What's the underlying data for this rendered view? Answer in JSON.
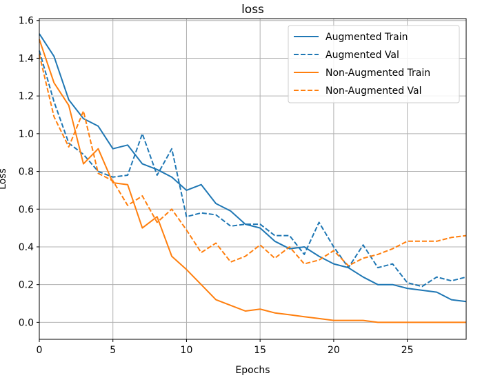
{
  "chart_data": {
    "type": "line",
    "title": "loss",
    "xlabel": "Epochs",
    "ylabel": "Loss",
    "xlim": [
      0,
      29
    ],
    "ylim": [
      -0.09,
      1.61
    ],
    "xticks": [
      0,
      5,
      10,
      15,
      20,
      25
    ],
    "yticks": [
      0.0,
      0.2,
      0.4,
      0.6,
      0.8,
      1.0,
      1.2,
      1.4,
      1.6
    ],
    "grid": true,
    "legend_position": "upper right",
    "x": [
      0,
      1,
      2,
      3,
      4,
      5,
      6,
      7,
      8,
      9,
      10,
      11,
      12,
      13,
      14,
      15,
      16,
      17,
      18,
      19,
      20,
      21,
      22,
      23,
      24,
      25,
      26,
      27,
      28,
      29
    ],
    "series": [
      {
        "name": "Augmented Train",
        "color": "#1f77b4",
        "linestyle": "solid",
        "values": [
          1.53,
          1.41,
          1.18,
          1.08,
          1.04,
          0.92,
          0.94,
          0.84,
          0.81,
          0.77,
          0.7,
          0.73,
          0.63,
          0.59,
          0.52,
          0.5,
          0.43,
          0.39,
          0.4,
          0.35,
          0.31,
          0.29,
          0.24,
          0.2,
          0.2,
          0.18,
          0.17,
          0.16,
          0.12,
          0.11
        ]
      },
      {
        "name": "Augmented Val",
        "color": "#1f77b4",
        "linestyle": "dashed",
        "values": [
          1.44,
          1.17,
          0.95,
          0.89,
          0.8,
          0.77,
          0.78,
          1.0,
          0.78,
          0.92,
          0.56,
          0.58,
          0.57,
          0.51,
          0.52,
          0.52,
          0.46,
          0.46,
          0.36,
          0.53,
          0.4,
          0.29,
          0.41,
          0.29,
          0.31,
          0.21,
          0.19,
          0.24,
          0.22,
          0.24
        ]
      },
      {
        "name": "Non-Augmented Train",
        "color": "#ff7f0e",
        "linestyle": "solid",
        "values": [
          1.5,
          1.27,
          1.15,
          0.84,
          0.92,
          0.74,
          0.73,
          0.5,
          0.56,
          0.35,
          0.28,
          0.2,
          0.12,
          0.09,
          0.06,
          0.07,
          0.05,
          0.04,
          0.03,
          0.02,
          0.01,
          0.01,
          0.01,
          0.0,
          0.0,
          0.0,
          0.0,
          0.0,
          0.0,
          0.0
        ]
      },
      {
        "name": "Non-Augmented Val",
        "color": "#ff7f0e",
        "linestyle": "dashed",
        "values": [
          1.42,
          1.09,
          0.93,
          1.12,
          0.79,
          0.75,
          0.62,
          0.67,
          0.53,
          0.6,
          0.49,
          0.37,
          0.42,
          0.32,
          0.35,
          0.41,
          0.34,
          0.4,
          0.31,
          0.33,
          0.38,
          0.3,
          0.34,
          0.36,
          0.39,
          0.43,
          0.43,
          0.43,
          0.45,
          0.46
        ]
      }
    ]
  }
}
